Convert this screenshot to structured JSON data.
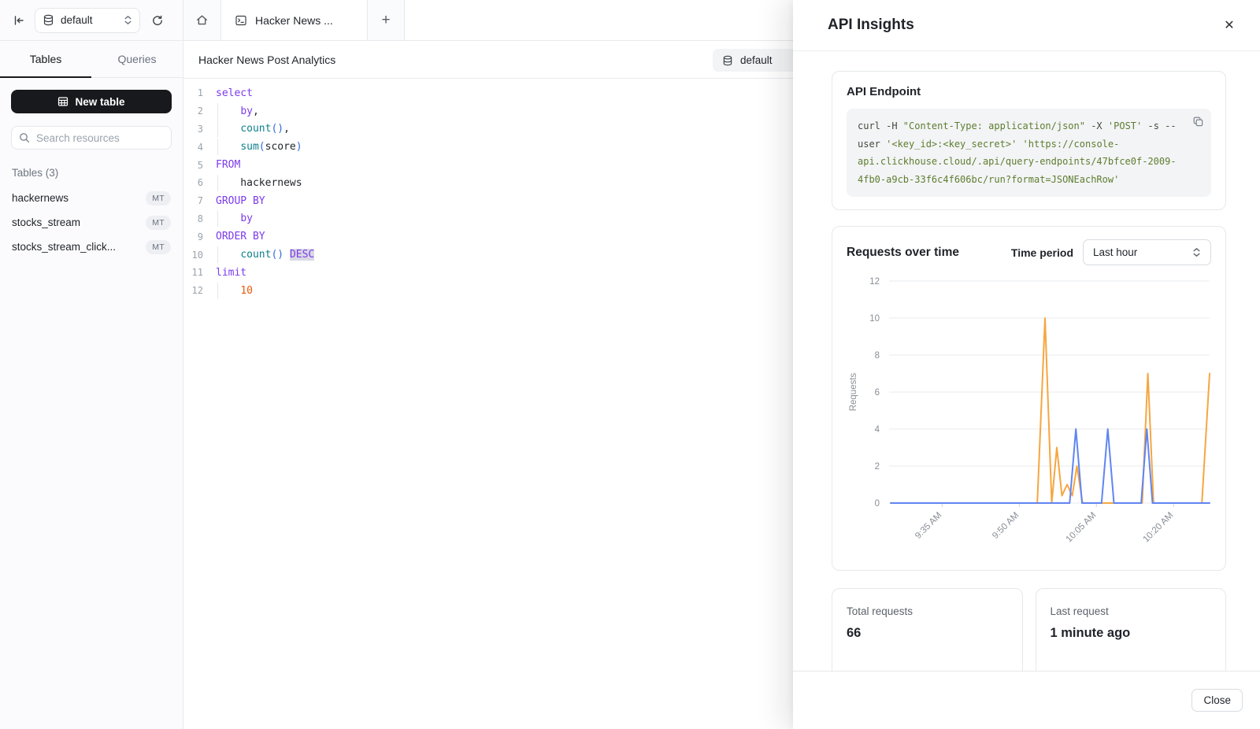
{
  "sidebar": {
    "database_selector": {
      "value": "default"
    },
    "tabs": [
      {
        "label": "Tables",
        "active": true
      },
      {
        "label": "Queries",
        "active": false
      }
    ],
    "new_table_label": "New table",
    "search_placeholder": "Search resources",
    "tables_heading": "Tables (3)",
    "tables": [
      {
        "name": "hackernews",
        "badge": "MT"
      },
      {
        "name": "stocks_stream",
        "badge": "MT"
      },
      {
        "name": "stocks_stream_click...",
        "badge": "MT"
      }
    ]
  },
  "editor": {
    "tab_title": "Hacker News ...",
    "plus_label": "+",
    "doc_title": "Hacker News Post Analytics",
    "database": "default",
    "code_lines": [
      {
        "n": "1",
        "indent": false,
        "segs": [
          {
            "t": "select",
            "c": "kw"
          }
        ]
      },
      {
        "n": "2",
        "indent": true,
        "segs": [
          {
            "t": "    ",
            "c": "pl"
          },
          {
            "t": "by",
            "c": "kw"
          },
          {
            "t": ",",
            "c": "pl"
          }
        ]
      },
      {
        "n": "3",
        "indent": true,
        "segs": [
          {
            "t": "    ",
            "c": "pl"
          },
          {
            "t": "count",
            "c": "fn"
          },
          {
            "t": "()",
            "c": "pr"
          },
          {
            "t": ",",
            "c": "pl"
          }
        ]
      },
      {
        "n": "4",
        "indent": true,
        "segs": [
          {
            "t": "    ",
            "c": "pl"
          },
          {
            "t": "sum",
            "c": "fn"
          },
          {
            "t": "(",
            "c": "pr"
          },
          {
            "t": "score",
            "c": "pl"
          },
          {
            "t": ")",
            "c": "pr"
          }
        ]
      },
      {
        "n": "5",
        "indent": false,
        "segs": [
          {
            "t": "FROM",
            "c": "kw"
          }
        ]
      },
      {
        "n": "6",
        "indent": true,
        "segs": [
          {
            "t": "    hackernews",
            "c": "pl"
          }
        ]
      },
      {
        "n": "7",
        "indent": false,
        "segs": [
          {
            "t": "GROUP BY",
            "c": "kw"
          }
        ]
      },
      {
        "n": "8",
        "indent": true,
        "segs": [
          {
            "t": "    ",
            "c": "pl"
          },
          {
            "t": "by",
            "c": "kw"
          }
        ]
      },
      {
        "n": "9",
        "indent": false,
        "segs": [
          {
            "t": "ORDER BY",
            "c": "kw"
          }
        ]
      },
      {
        "n": "10",
        "indent": true,
        "segs": [
          {
            "t": "    ",
            "c": "pl"
          },
          {
            "t": "count",
            "c": "fn"
          },
          {
            "t": "()",
            "c": "pr"
          },
          {
            "t": " ",
            "c": "pl"
          },
          {
            "t": "DESC",
            "c": "kw sel"
          }
        ]
      },
      {
        "n": "11",
        "indent": false,
        "segs": [
          {
            "t": "limit",
            "c": "kw"
          }
        ]
      },
      {
        "n": "12",
        "indent": true,
        "segs": [
          {
            "t": "    ",
            "c": "pl"
          },
          {
            "t": "10",
            "c": "num"
          }
        ]
      }
    ]
  },
  "panel": {
    "title": "API Insights",
    "close_icon": "✕",
    "endpoint": {
      "heading": "API Endpoint",
      "curl_segments": [
        {
          "t": "curl -H ",
          "c": "c"
        },
        {
          "t": "\"Content-Type: application/json\"",
          "c": "s"
        },
        {
          "t": " -X ",
          "c": "c"
        },
        {
          "t": "'POST'",
          "c": "s"
        },
        {
          "t": " -s --user ",
          "c": "c"
        },
        {
          "t": "'<key_id>:<key_secret>'",
          "c": "s"
        },
        {
          "t": " ",
          "c": "c"
        },
        {
          "t": "'https://console-api.clickhouse.cloud/.api/query-endpoints/47bfce0f-2009-4fb0-a9cb-33f6c4f606bc/run?format=JSONEachRow'",
          "c": "s"
        }
      ]
    },
    "requests_card": {
      "title": "Requests over time",
      "time_period_label": "Time period",
      "time_period_value": "Last hour"
    },
    "stats": [
      {
        "label": "Total requests",
        "value": "66"
      },
      {
        "label": "Last request",
        "value": "1 minute ago"
      }
    ],
    "close_label": "Close"
  },
  "chart_data": {
    "type": "line",
    "title": "Requests over time",
    "xlabel": "",
    "ylabel": "Requests",
    "ylim": [
      0,
      12
    ],
    "yticks": [
      0,
      2,
      4,
      6,
      8,
      10,
      12
    ],
    "x_unit": "minutes since 9:25 AM",
    "xlim": [
      0,
      62
    ],
    "xticks": [
      {
        "pos": 10,
        "label": "9:35 AM"
      },
      {
        "pos": 25,
        "label": "9:50 AM"
      },
      {
        "pos": 40,
        "label": "10:05 AM"
      },
      {
        "pos": 55,
        "label": "10:20 AM"
      }
    ],
    "grid": true,
    "legend_position": "none",
    "series": [
      {
        "name": "requests-orange",
        "color": "#F6A640",
        "points": [
          [
            0,
            0
          ],
          [
            28.5,
            0
          ],
          [
            30,
            10
          ],
          [
            31.3,
            0
          ],
          [
            32.3,
            3
          ],
          [
            33.3,
            0.4
          ],
          [
            34.3,
            1
          ],
          [
            35.3,
            0.4
          ],
          [
            36.2,
            2
          ],
          [
            37.3,
            0
          ],
          [
            48.9,
            0
          ],
          [
            50,
            7
          ],
          [
            51.1,
            0
          ],
          [
            60.5,
            0
          ],
          [
            62,
            7
          ]
        ]
      },
      {
        "name": "requests-blue",
        "color": "#6085F2",
        "points": [
          [
            0,
            0
          ],
          [
            34.8,
            0
          ],
          [
            36,
            4
          ],
          [
            37.2,
            0
          ],
          [
            41,
            0
          ],
          [
            42.2,
            4
          ],
          [
            43.4,
            0
          ],
          [
            48.7,
            0
          ],
          [
            49.8,
            4
          ],
          [
            50.9,
            0
          ],
          [
            62,
            0
          ]
        ]
      }
    ]
  }
}
